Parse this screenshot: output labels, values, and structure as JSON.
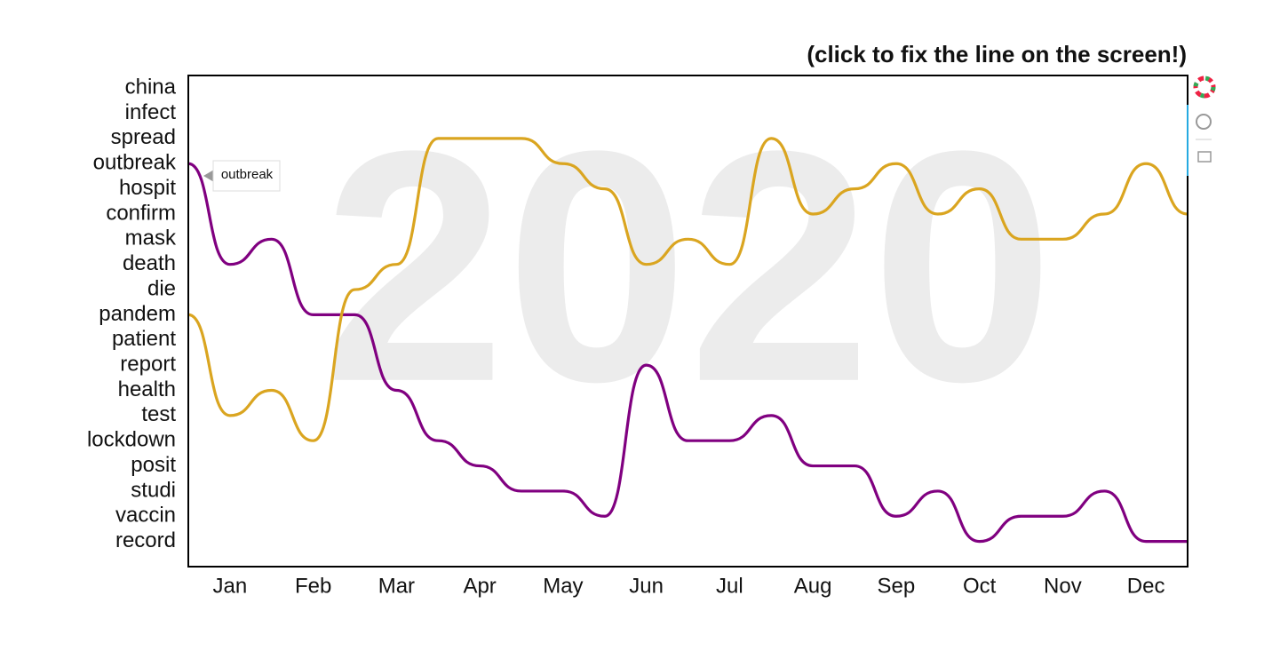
{
  "chart_data": {
    "type": "bump",
    "title": "(click to fix the line on the screen!)",
    "watermark": "2020",
    "tooltip": "outbreak",
    "x": [
      0.5,
      1,
      1.5,
      2,
      2.5,
      3,
      3.5,
      4,
      4.5,
      5,
      5.5,
      6,
      6.5,
      7,
      7.5,
      8,
      8.5,
      9,
      9.5,
      10,
      10.5,
      11,
      11.5,
      12,
      12.5
    ],
    "series": [
      {
        "name": "outbreak",
        "color": "#800080",
        "values": [
          4,
          8,
          7,
          10,
          10,
          13,
          15,
          16,
          17,
          17,
          18,
          12,
          15,
          15,
          14,
          16,
          16,
          18,
          17,
          19,
          18,
          18,
          17,
          19,
          19
        ]
      },
      {
        "color": "#daa520",
        "values": [
          10,
          14,
          13,
          15,
          9,
          8,
          3,
          3,
          3,
          4,
          5,
          8,
          7,
          8,
          3,
          6,
          5,
          4,
          6,
          5,
          7,
          7,
          6,
          4,
          6
        ]
      }
    ],
    "xlim": [
      0.5,
      12.5
    ],
    "xticks": [
      {
        "value": 1,
        "label": "Jan"
      },
      {
        "value": 2,
        "label": "Feb"
      },
      {
        "value": 3,
        "label": "Mar"
      },
      {
        "value": 4,
        "label": "Apr"
      },
      {
        "value": 5,
        "label": "May"
      },
      {
        "value": 6,
        "label": "Jun"
      },
      {
        "value": 7,
        "label": "Jul"
      },
      {
        "value": 8,
        "label": "Aug"
      },
      {
        "value": 9,
        "label": "Sep"
      },
      {
        "value": 10,
        "label": "Oct"
      },
      {
        "value": 11,
        "label": "Nov"
      },
      {
        "value": 12,
        "label": "Dec"
      }
    ],
    "ylim": [
      0.5,
      20
    ],
    "y_reversed": true,
    "yticks": [
      {
        "value": 1,
        "label": "china"
      },
      {
        "value": 2,
        "label": "infect"
      },
      {
        "value": 3,
        "label": "spread"
      },
      {
        "value": 4,
        "label": "outbreak"
      },
      {
        "value": 5,
        "label": "hospit"
      },
      {
        "value": 6,
        "label": "confirm"
      },
      {
        "value": 7,
        "label": "mask"
      },
      {
        "value": 8,
        "label": "death"
      },
      {
        "value": 9,
        "label": "die"
      },
      {
        "value": 10,
        "label": "pandem"
      },
      {
        "value": 11,
        "label": "patient"
      },
      {
        "value": 12,
        "label": "report"
      },
      {
        "value": 13,
        "label": "health"
      },
      {
        "value": 14,
        "label": "test"
      },
      {
        "value": 15,
        "label": "lockdown"
      },
      {
        "value": 16,
        "label": "posit"
      },
      {
        "value": 17,
        "label": "studi"
      },
      {
        "value": 18,
        "label": "vaccin"
      },
      {
        "value": 19,
        "label": "record"
      }
    ]
  }
}
